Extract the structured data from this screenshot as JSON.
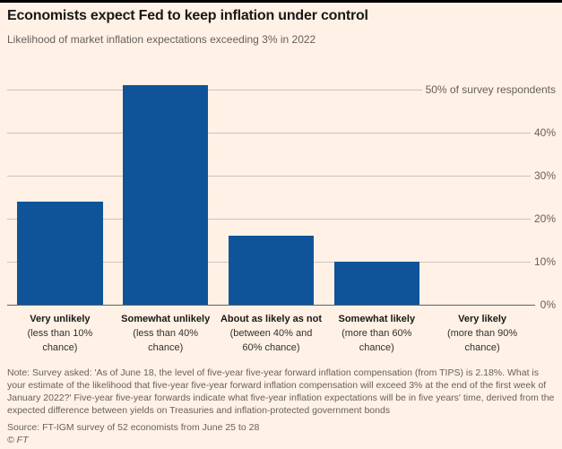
{
  "header": {
    "title": "Economists expect Fed to keep inflation under control",
    "subtitle": "Likelihood of market inflation expectations exceeding 3% in 2022"
  },
  "chart_data": {
    "type": "bar",
    "title": "Economists expect Fed to keep inflation under control",
    "subtitle": "Likelihood of market inflation expectations exceeding 3% in 2022",
    "categories": [
      {
        "label": "Very unlikely",
        "sub": "(less than 10% chance)"
      },
      {
        "label": "Somewhat unlikely",
        "sub": "(less than 40% chance)"
      },
      {
        "label": "About as likely as not",
        "sub": "(between 40% and 60% chance)"
      },
      {
        "label": "Somewhat likely",
        "sub": "(more than 60% chance)"
      },
      {
        "label": "Very likely",
        "sub": "(more than 90% chance)"
      }
    ],
    "values": [
      24,
      51,
      16,
      10,
      0
    ],
    "xlabel": "",
    "ylabel": "% of survey respondents",
    "ylim": [
      0,
      50
    ],
    "yticks": [
      {
        "value": 50,
        "label": "50% of survey respondents"
      },
      {
        "value": 40,
        "label": "40%"
      },
      {
        "value": 30,
        "label": "30%"
      },
      {
        "value": 20,
        "label": "20%"
      },
      {
        "value": 10,
        "label": "10%"
      },
      {
        "value": 0,
        "label": "0%"
      }
    ],
    "grid": true,
    "legend_position": "none",
    "bar_color": "#0F5499",
    "background_color": "#FFF1E5"
  },
  "footer": {
    "note": "Note: Survey asked: 'As of June 18, the level of five-year five-year forward inflation compensation (from TIPS) is 2.18%. What is your estimate of the likelihood that five-year five-year forward inflation compensation will exceed 3% at the end of the first week of January 2022?' Five-year five-year forwards indicate what five-year inflation expectations will be in five years' time, derived from the expected difference between yields on Treasuries and inflation-protected government bonds",
    "source": "Source: FT-IGM survey of 52 economists from June 25 to 28",
    "copyright": "© FT"
  }
}
